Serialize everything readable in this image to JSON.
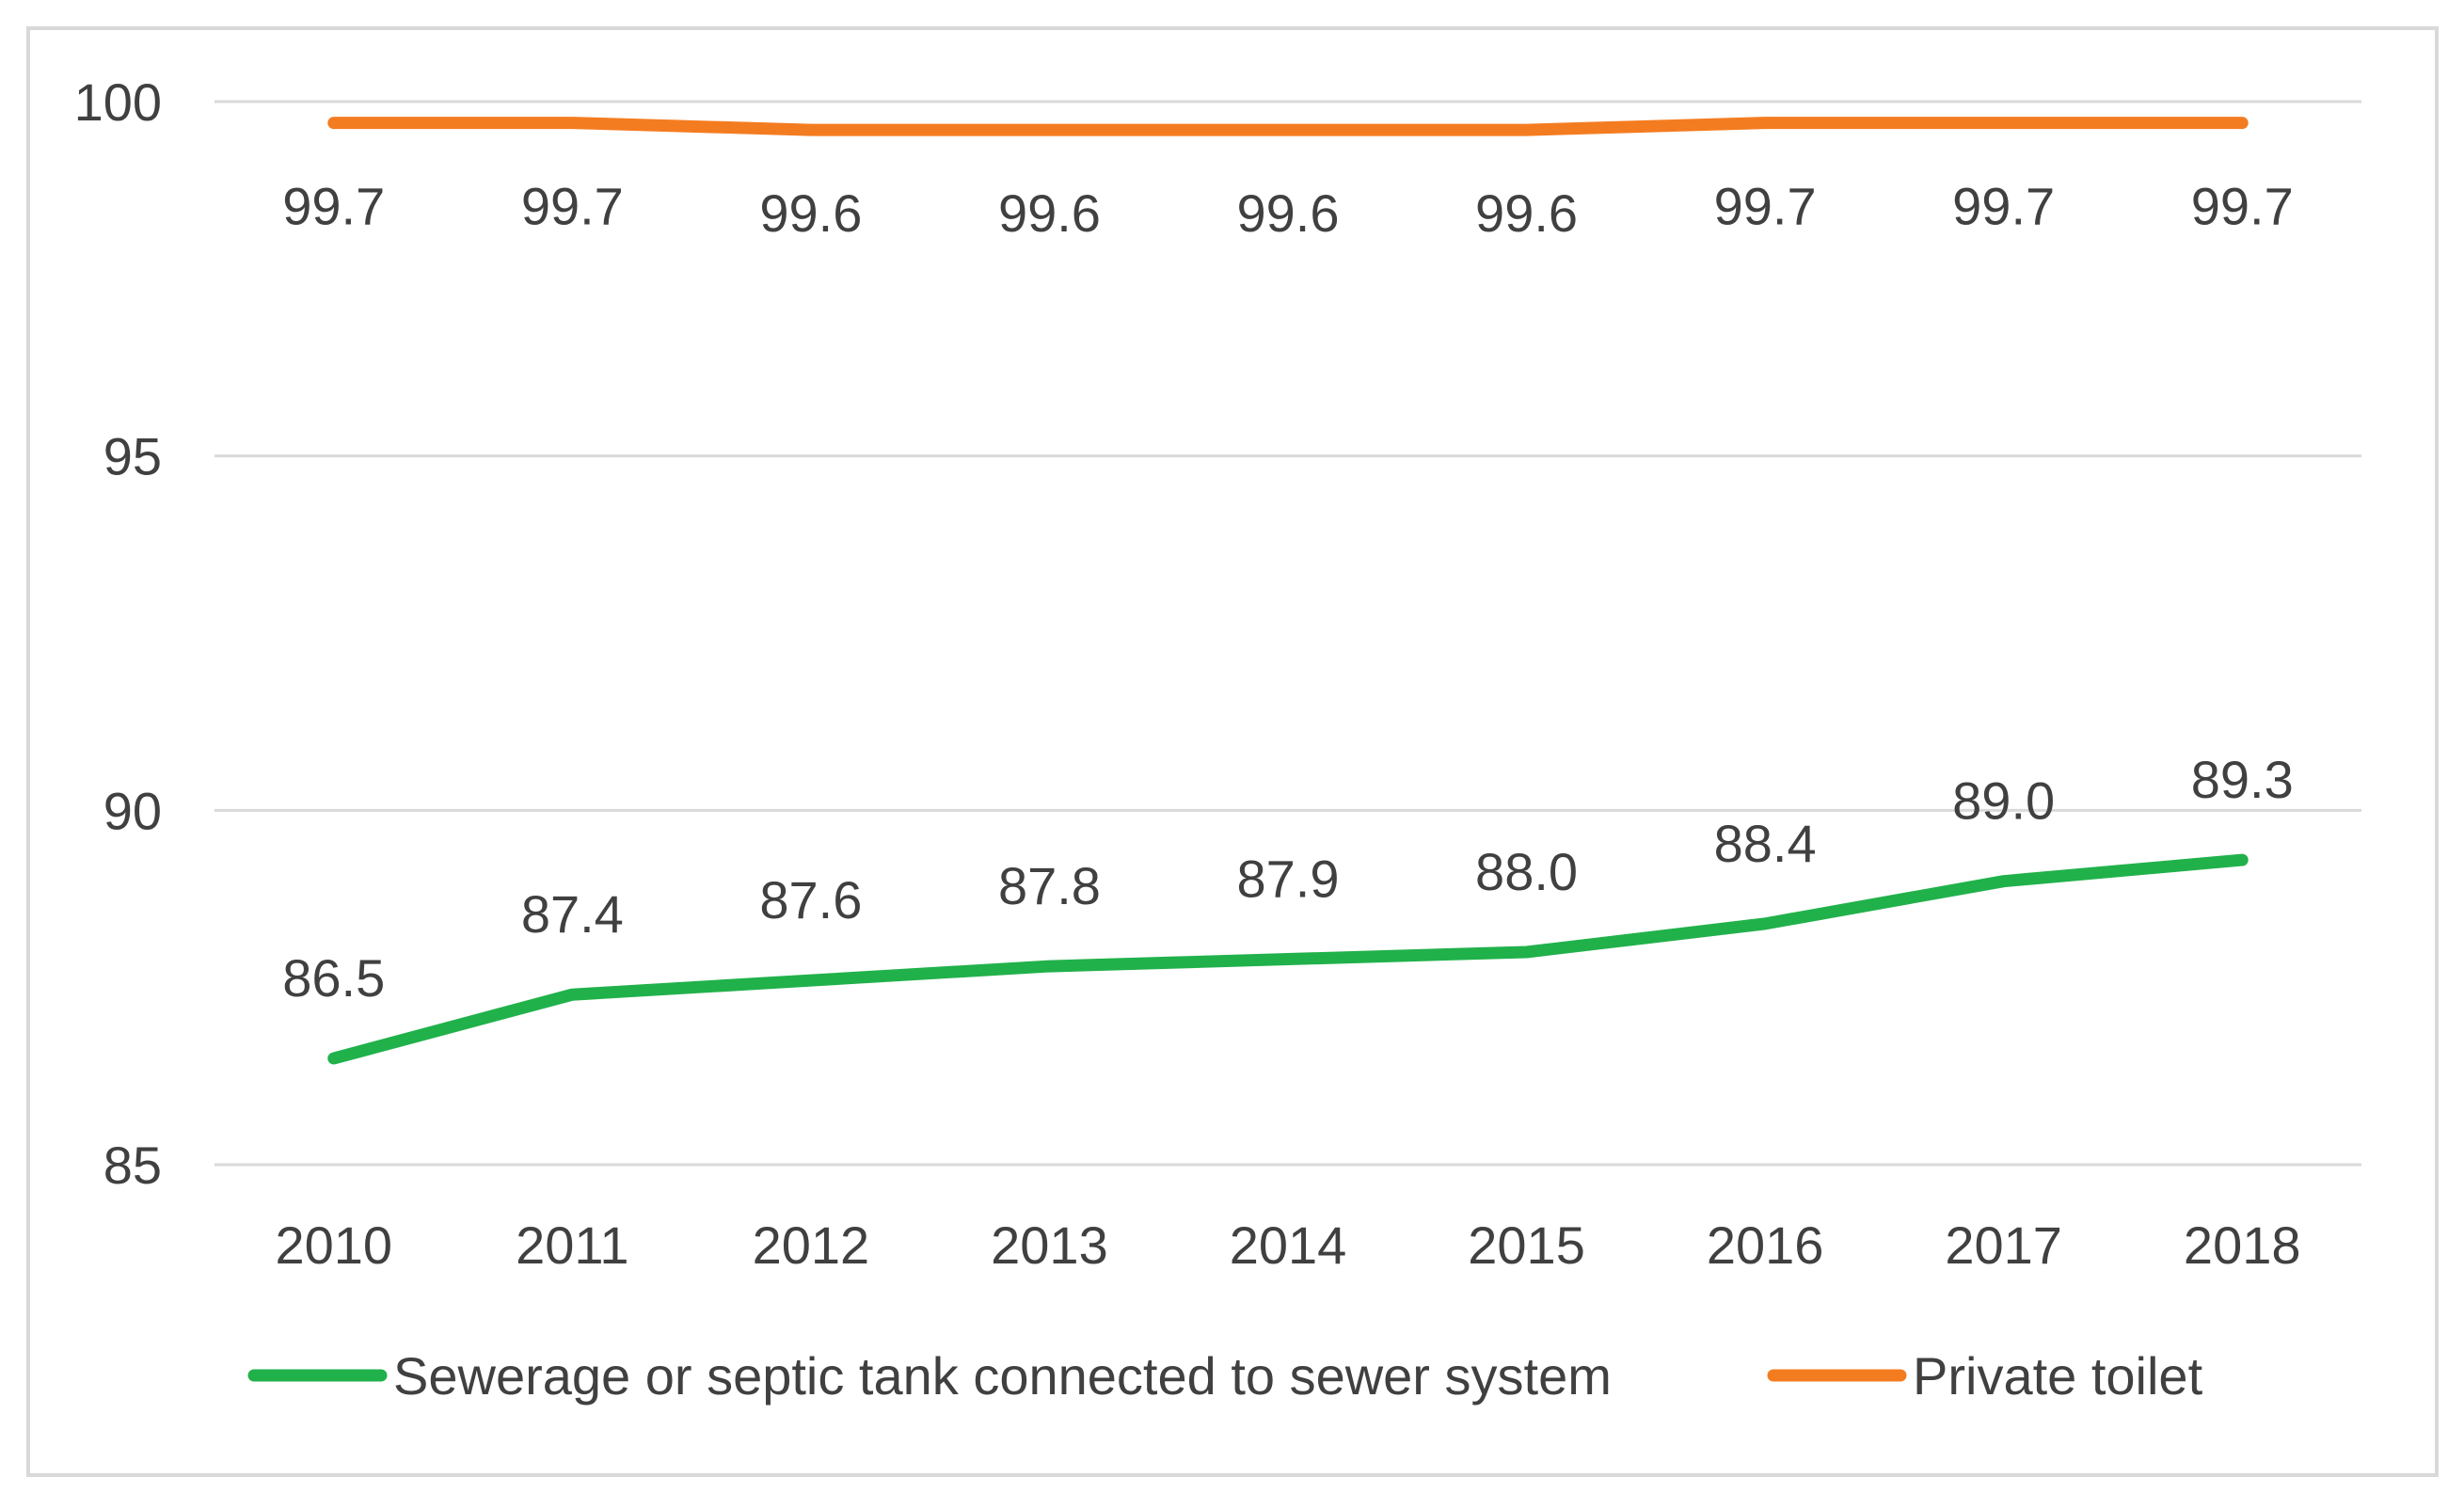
{
  "chart_data": {
    "type": "line",
    "title": "",
    "xlabel": "",
    "ylabel": "",
    "categories": [
      "2010",
      "2011",
      "2012",
      "2013",
      "2014",
      "2015",
      "2016",
      "2017",
      "2018"
    ],
    "ylim": [
      85,
      100
    ],
    "yticks": [
      85,
      90,
      95,
      100
    ],
    "grid": true,
    "legend_position": "bottom",
    "series": [
      {
        "name": "Sewerage or septic tank connected to sewer system",
        "color": "#21b14b",
        "values": [
          86.5,
          87.4,
          87.6,
          87.8,
          87.9,
          88.0,
          88.4,
          89.0,
          89.3
        ],
        "labels": [
          "86.5",
          "87.4",
          "87.6",
          "87.8",
          "87.9",
          "88.0",
          "88.4",
          "89.0",
          "89.3"
        ],
        "label_side": "above"
      },
      {
        "name": "Private toilet",
        "color": "#f47c20",
        "values": [
          99.7,
          99.7,
          99.6,
          99.6,
          99.6,
          99.6,
          99.7,
          99.7,
          99.7
        ],
        "labels": [
          "99.7",
          "99.7",
          "99.6",
          "99.6",
          "99.6",
          "99.6",
          "99.7",
          "99.7",
          "99.7"
        ],
        "label_side": "below"
      }
    ]
  }
}
